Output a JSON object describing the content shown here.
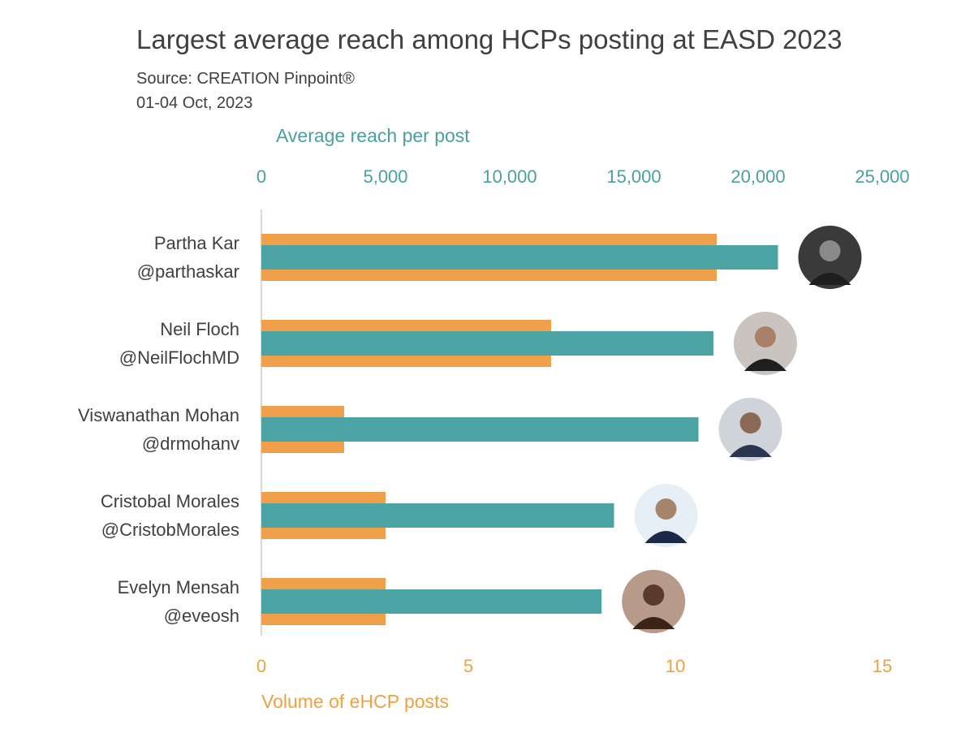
{
  "title": "Largest average reach among HCPs posting at EASD 2023",
  "source": "Source: CREATION Pinpoint®",
  "date_range": "01-04 Oct, 2023",
  "colors": {
    "reach": "#4ca3a3",
    "volume": "#f0a04b",
    "text": "#404040",
    "axis_line": "#d9d9d9"
  },
  "chart_data": {
    "type": "bar",
    "orientation": "horizontal",
    "categories": [
      {
        "name": "Partha Kar",
        "handle": "@parthaskar"
      },
      {
        "name": "Neil Floch",
        "handle": "@NeilFlochMD"
      },
      {
        "name": "Viswanathan Mohan",
        "handle": "@drmohanv"
      },
      {
        "name": "Cristobal Morales",
        "handle": "@CristobMorales"
      },
      {
        "name": "Evelyn Mensah",
        "handle": "@eveosh"
      }
    ],
    "series": [
      {
        "axis": "top",
        "values": [
          20800,
          18200,
          17600,
          14200,
          13700
        ]
      },
      {
        "axis": "bottom",
        "values": [
          11,
          7,
          2,
          3,
          3
        ]
      }
    ],
    "top_axis": {
      "label": "Average reach per post",
      "range": [
        0,
        25000
      ],
      "ticks": [
        "0",
        "5,000",
        "10,000",
        "15,000",
        "20,000",
        "25,000"
      ]
    },
    "bottom_axis": {
      "label": "Volume of eHCP posts",
      "range": [
        0,
        15
      ],
      "ticks": [
        "0",
        "5",
        "10",
        "15"
      ]
    },
    "avatars": [
      "person-photo",
      "person-photo",
      "person-photo",
      "person-photo",
      "person-photo"
    ],
    "grid": false
  }
}
